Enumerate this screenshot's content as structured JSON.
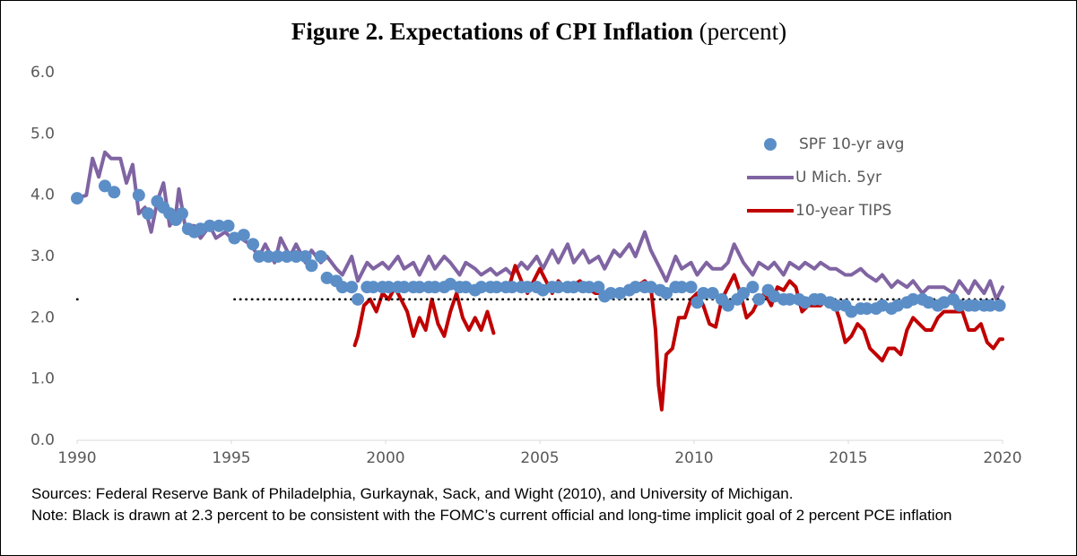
{
  "chart_data": {
    "type": "line",
    "title": "Figure 2. Expectations of CPI Inflation",
    "subtitle": "(percent)",
    "xlim": [
      1990,
      2020
    ],
    "xticks": [
      1990,
      1995,
      2000,
      2005,
      2010,
      2015,
      2020
    ],
    "ylim": [
      0,
      6
    ],
    "yticks": [
      {
        "value": 0,
        "label": "0.0"
      },
      {
        "value": 1,
        "label": "1.0"
      },
      {
        "value": 2,
        "label": "2.0"
      },
      {
        "value": 3,
        "label": "3.0"
      },
      {
        "value": 4,
        "label": "4.0"
      },
      {
        "value": 5,
        "label": "5.0"
      },
      {
        "value": 6,
        "label": "6.0"
      }
    ],
    "legend": "upper right",
    "series": [
      {
        "type": "line",
        "name": "U Mich. 5yr",
        "color": "#8064a2",
        "x": [
          1990,
          1990.3,
          1990.5,
          1990.7,
          1990.9,
          1991.1,
          1991.4,
          1991.6,
          1991.8,
          1992.0,
          1992.2,
          1992.4,
          1992.6,
          1992.8,
          1993.0,
          1993.2,
          1993.3,
          1993.5,
          1993.8,
          1994.0,
          1994.3,
          1994.5,
          1994.8,
          1995.0,
          1995.3,
          1995.6,
          1995.9,
          1996.1,
          1996.4,
          1996.6,
          1996.9,
          1997.1,
          1997.4,
          1997.6,
          1997.9,
          1998.1,
          1998.4,
          1998.6,
          1998.9,
          1999.1,
          1999.4,
          1999.6,
          1999.9,
          2000.1,
          2000.4,
          2000.6,
          2000.9,
          2001.1,
          2001.4,
          2001.6,
          2001.9,
          2002.1,
          2002.4,
          2002.6,
          2002.9,
          2003.1,
          2003.4,
          2003.6,
          2003.9,
          2004.1,
          2004.4,
          2004.6,
          2004.9,
          2005.1,
          2005.4,
          2005.6,
          2005.9,
          2006.1,
          2006.4,
          2006.6,
          2006.9,
          2007.1,
          2007.4,
          2007.6,
          2007.9,
          2008.1,
          2008.4,
          2008.6,
          2008.9,
          2009.1,
          2009.4,
          2009.6,
          2009.9,
          2010.1,
          2010.4,
          2010.6,
          2010.9,
          2011.1,
          2011.3,
          2011.6,
          2011.9,
          2012.1,
          2012.4,
          2012.6,
          2012.9,
          2013.1,
          2013.4,
          2013.6,
          2013.9,
          2014.1,
          2014.4,
          2014.6,
          2014.9,
          2015.1,
          2015.4,
          2015.6,
          2015.9,
          2016.1,
          2016.4,
          2016.6,
          2016.9,
          2017.1,
          2017.4,
          2017.6,
          2017.9,
          2018.1,
          2018.4,
          2018.6,
          2018.9,
          2019.1,
          2019.4,
          2019.6,
          2019.8,
          2020.0
        ],
        "values": [
          3.95,
          4.0,
          4.6,
          4.3,
          4.7,
          4.6,
          4.6,
          4.2,
          4.5,
          3.7,
          3.8,
          3.4,
          3.9,
          4.2,
          3.5,
          3.7,
          4.1,
          3.5,
          3.5,
          3.3,
          3.5,
          3.3,
          3.4,
          3.3,
          3.3,
          3.2,
          3.0,
          3.2,
          2.9,
          3.3,
          3.0,
          3.2,
          2.9,
          3.1,
          2.9,
          3.0,
          2.8,
          2.7,
          3.0,
          2.6,
          2.9,
          2.8,
          2.9,
          2.8,
          3.0,
          2.8,
          2.9,
          2.7,
          3.0,
          2.8,
          3.0,
          2.9,
          2.7,
          2.9,
          2.8,
          2.7,
          2.8,
          2.7,
          2.8,
          2.7,
          2.9,
          2.8,
          3.0,
          2.8,
          3.1,
          2.9,
          3.2,
          2.9,
          3.1,
          2.9,
          3.0,
          2.8,
          3.1,
          3.0,
          3.2,
          3.0,
          3.4,
          3.1,
          2.8,
          2.6,
          3.0,
          2.8,
          2.9,
          2.7,
          2.9,
          2.8,
          2.8,
          2.9,
          3.2,
          2.9,
          2.7,
          2.9,
          2.8,
          2.9,
          2.7,
          2.9,
          2.8,
          2.9,
          2.8,
          2.9,
          2.8,
          2.8,
          2.7,
          2.7,
          2.8,
          2.7,
          2.6,
          2.7,
          2.5,
          2.6,
          2.5,
          2.6,
          2.4,
          2.5,
          2.5,
          2.5,
          2.4,
          2.6,
          2.4,
          2.6,
          2.4,
          2.6,
          2.3,
          2.5
        ]
      },
      {
        "type": "line",
        "name": "10-year TIPS",
        "color": "#c00000",
        "x": [
          1999.0,
          1999.1,
          1999.3,
          1999.5,
          1999.7,
          1999.9,
          2000.1,
          2000.3,
          2000.5,
          2000.7,
          2000.9,
          2001.1,
          2001.3,
          2001.5,
          2001.7,
          2001.9,
          2002.1,
          2002.3,
          2002.5,
          2002.7,
          2002.9,
          2003.1,
          2003.3,
          2003.5,
          2003.8,
          2004.0,
          2004.2,
          2004.4,
          2004.6,
          2004.8,
          2005.0,
          2005.2,
          2005.4,
          2005.6,
          2005.8,
          2006.0,
          2006.3,
          2006.5,
          2006.8,
          2007.0,
          2007.3,
          2007.6,
          2007.9,
          2008.1,
          2008.4,
          2008.6,
          2008.75,
          2008.85,
          2008.95,
          2009.1,
          2009.3,
          2009.5,
          2009.7,
          2009.9,
          2010.1,
          2010.3,
          2010.5,
          2010.7,
          2010.9,
          2011.1,
          2011.3,
          2011.5,
          2011.7,
          2011.9,
          2012.1,
          2012.3,
          2012.5,
          2012.7,
          2012.9,
          2013.1,
          2013.3,
          2013.5,
          2013.7,
          2013.9,
          2014.1,
          2014.3,
          2014.5,
          2014.7,
          2014.9,
          2015.1,
          2015.3,
          2015.5,
          2015.7,
          2015.9,
          2016.1,
          2016.3,
          2016.5,
          2016.7,
          2016.9,
          2017.1,
          2017.3,
          2017.5,
          2017.7,
          2017.9,
          2018.1,
          2018.3,
          2018.5,
          2018.7,
          2018.9,
          2019.1,
          2019.3,
          2019.5,
          2019.7,
          2019.9,
          2020.0
        ],
        "values": [
          1.55,
          1.7,
          2.2,
          2.3,
          2.1,
          2.4,
          2.3,
          2.5,
          2.3,
          2.1,
          1.7,
          2.0,
          1.8,
          2.3,
          1.9,
          1.7,
          2.1,
          2.4,
          2.0,
          1.8,
          2.0,
          1.8,
          2.1,
          1.75,
          null,
          2.5,
          2.85,
          2.6,
          2.4,
          2.6,
          2.8,
          2.6,
          2.4,
          2.6,
          2.5,
          2.5,
          2.6,
          2.5,
          2.4,
          2.4,
          2.4,
          2.4,
          2.4,
          2.5,
          2.6,
          2.5,
          1.8,
          0.9,
          0.5,
          1.4,
          1.5,
          2.0,
          2.0,
          2.3,
          2.4,
          2.2,
          1.9,
          1.85,
          2.3,
          2.5,
          2.7,
          2.4,
          2.0,
          2.1,
          2.3,
          2.4,
          2.2,
          2.5,
          2.45,
          2.6,
          2.5,
          2.1,
          2.2,
          2.2,
          2.2,
          2.3,
          2.3,
          2.0,
          1.6,
          1.7,
          1.9,
          1.8,
          1.5,
          1.4,
          1.3,
          1.5,
          1.5,
          1.4,
          1.8,
          2.0,
          1.9,
          1.8,
          1.8,
          2.0,
          2.1,
          2.1,
          2.1,
          2.1,
          1.8,
          1.8,
          1.9,
          1.6,
          1.5,
          1.65,
          1.65
        ]
      },
      {
        "type": "line",
        "dash": "dotted",
        "color": "#000000",
        "x": [
          1990.0,
          1990.1,
          1992.0,
          1995.1,
          2020.0
        ],
        "values": [
          2.3,
          2.3,
          null,
          2.3,
          2.3
        ]
      },
      {
        "type": "scatter",
        "name": "SPF 10-yr avg",
        "color": "#5b8ec7",
        "x": [
          1990.0,
          1990.9,
          1991.2,
          1992.0,
          1992.3,
          1992.6,
          1992.8,
          1993.0,
          1993.2,
          1993.4,
          1993.6,
          1993.8,
          1994.0,
          1994.3,
          1994.6,
          1994.9,
          1995.1,
          1995.4,
          1995.7,
          1995.9,
          1996.2,
          1996.5,
          1996.8,
          1997.1,
          1997.4,
          1997.6,
          1997.9,
          1998.1,
          1998.4,
          1998.6,
          1998.9,
          1999.1,
          1999.4,
          1999.6,
          1999.9,
          2000.1,
          2000.4,
          2000.6,
          2000.9,
          2001.1,
          2001.4,
          2001.6,
          2001.9,
          2002.1,
          2002.4,
          2002.6,
          2002.9,
          2003.1,
          2003.4,
          2003.6,
          2003.9,
          2004.1,
          2004.4,
          2004.6,
          2004.9,
          2005.1,
          2005.4,
          2005.6,
          2005.9,
          2006.1,
          2006.4,
          2006.6,
          2006.9,
          2007.1,
          2007.3,
          2007.6,
          2007.9,
          2008.1,
          2008.4,
          2008.6,
          2008.9,
          2009.1,
          2009.4,
          2009.6,
          2009.9,
          2010.1,
          2010.3,
          2010.6,
          2010.9,
          2011.1,
          2011.4,
          2011.6,
          2011.9,
          2012.1,
          2012.4,
          2012.6,
          2012.9,
          2013.1,
          2013.4,
          2013.6,
          2013.9,
          2014.1,
          2014.4,
          2014.6,
          2014.9,
          2015.1,
          2015.4,
          2015.6,
          2015.9,
          2016.1,
          2016.4,
          2016.6,
          2016.9,
          2017.1,
          2017.4,
          2017.6,
          2017.9,
          2018.1,
          2018.4,
          2018.6,
          2018.9,
          2019.1,
          2019.4,
          2019.6,
          2019.9
        ],
        "values": [
          3.95,
          4.15,
          4.05,
          4.0,
          3.7,
          3.9,
          3.8,
          3.7,
          3.6,
          3.7,
          3.45,
          3.4,
          3.45,
          3.5,
          3.5,
          3.5,
          3.3,
          3.35,
          3.2,
          3.0,
          3.0,
          3.0,
          3.0,
          3.0,
          3.0,
          2.85,
          3.0,
          2.65,
          2.6,
          2.5,
          2.5,
          2.3,
          2.5,
          2.5,
          2.5,
          2.5,
          2.5,
          2.5,
          2.5,
          2.5,
          2.5,
          2.5,
          2.5,
          2.55,
          2.5,
          2.5,
          2.45,
          2.5,
          2.5,
          2.5,
          2.5,
          2.5,
          2.5,
          2.5,
          2.5,
          2.45,
          2.5,
          2.5,
          2.5,
          2.5,
          2.5,
          2.5,
          2.5,
          2.35,
          2.4,
          2.4,
          2.45,
          2.5,
          2.5,
          2.5,
          2.45,
          2.4,
          2.5,
          2.5,
          2.5,
          2.25,
          2.4,
          2.4,
          2.3,
          2.2,
          2.3,
          2.4,
          2.5,
          2.3,
          2.45,
          2.35,
          2.3,
          2.3,
          2.3,
          2.25,
          2.3,
          2.3,
          2.25,
          2.2,
          2.2,
          2.1,
          2.15,
          2.15,
          2.15,
          2.2,
          2.15,
          2.2,
          2.25,
          2.3,
          2.3,
          2.25,
          2.2,
          2.25,
          2.3,
          2.2,
          2.2,
          2.2,
          2.2,
          2.2,
          2.2
        ]
      }
    ],
    "sources": "Sources: Federal Reserve Bank of Philadelphia, Gurkaynak, Sack, and Wight (2010), and University of Michigan.",
    "note": "Note: Black is drawn at 2.3 percent to be consistent with the FOMC’s current official and long-time implicit goal of 2 percent PCE inflation"
  }
}
